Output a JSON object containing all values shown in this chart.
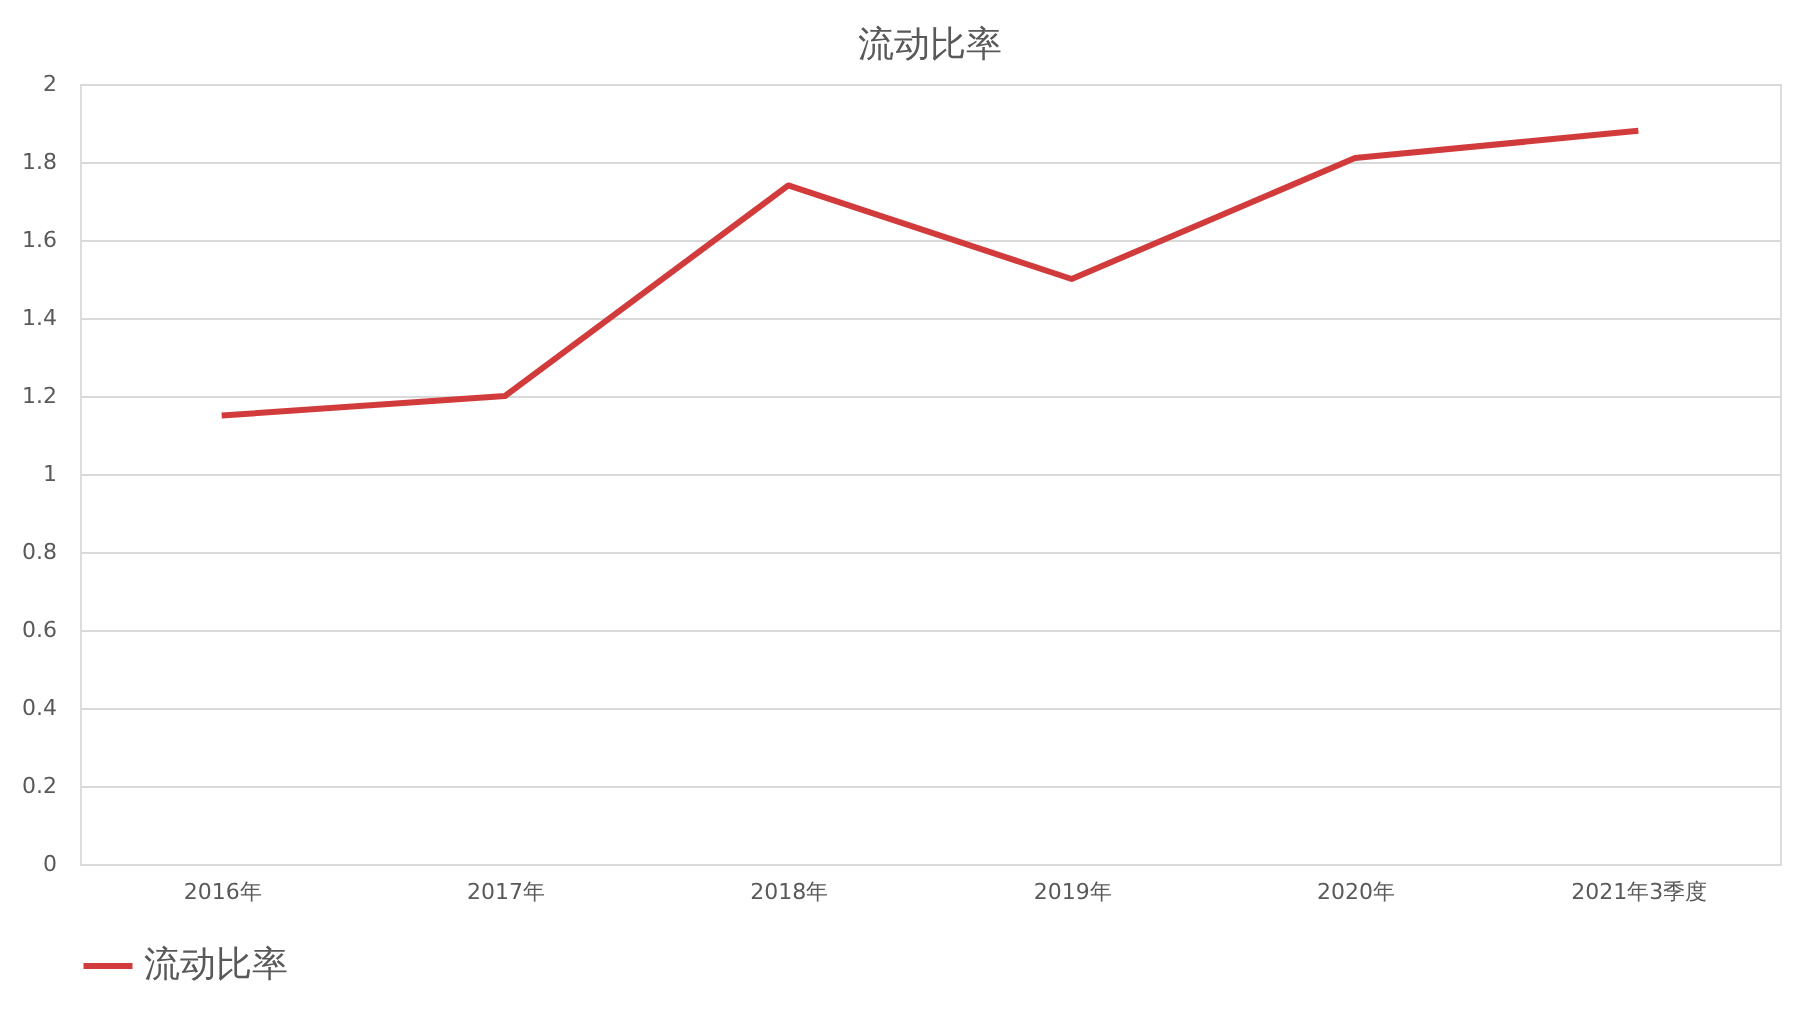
{
  "chart_data": {
    "type": "line",
    "title": "流动比率",
    "categories": [
      "2016年",
      "2017年",
      "2018年",
      "2019年",
      "2020年",
      "2021年3季度"
    ],
    "series": [
      {
        "name": "流动比率",
        "color": "#d23b3b",
        "values": [
          1.15,
          1.2,
          1.74,
          1.5,
          1.81,
          1.88
        ]
      }
    ],
    "ylim": [
      0,
      2
    ],
    "yticks": [
      0,
      0.2,
      0.4,
      0.6,
      0.8,
      1,
      1.2,
      1.4,
      1.6,
      1.8,
      2
    ],
    "grid": "y",
    "legend": "bottom",
    "marker": "none",
    "line_style": "solid"
  }
}
